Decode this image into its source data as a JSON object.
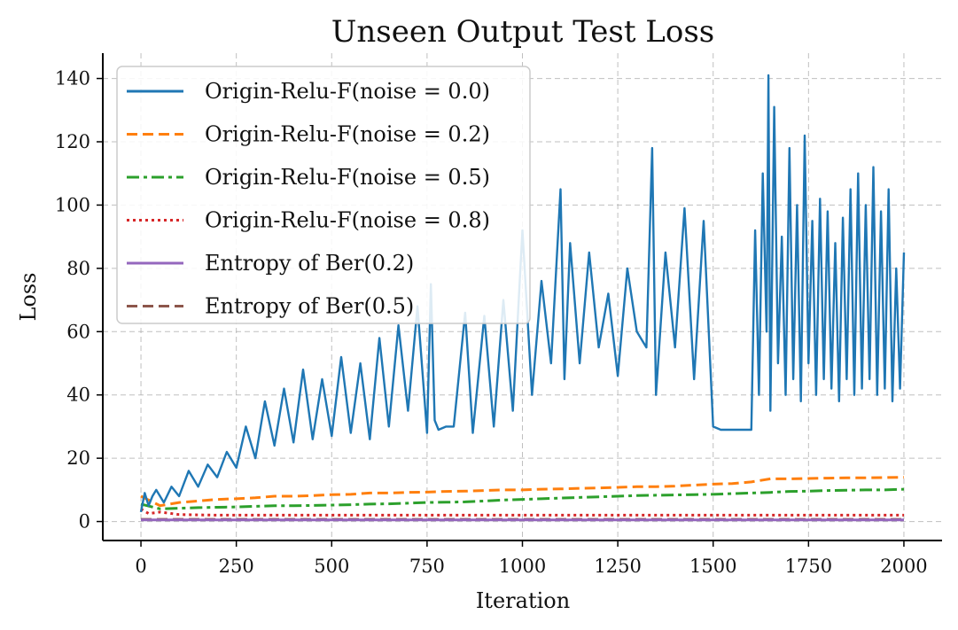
{
  "chart_data": {
    "type": "line",
    "title": "Unseen Output Test Loss",
    "xlabel": "Iteration",
    "ylabel": "Loss",
    "xlim": [
      -100,
      2100
    ],
    "ylim": [
      -6,
      148
    ],
    "xticks": [
      0,
      250,
      500,
      750,
      1000,
      1250,
      1500,
      1750,
      2000
    ],
    "xtick_labels": [
      "0",
      "250",
      "500",
      "750",
      "1000",
      "1250",
      "1500",
      "1750",
      "2000"
    ],
    "yticks": [
      0,
      20,
      40,
      60,
      80,
      100,
      120,
      140
    ],
    "ytick_labels": [
      "0",
      "20",
      "40",
      "60",
      "80",
      "100",
      "120",
      "140"
    ],
    "grid": true,
    "legend_position": "top-left",
    "series": [
      {
        "name": "Origin-Relu-F(noise = 0.0)",
        "color": "#1f77b4",
        "style": "solid",
        "x": [
          0,
          10,
          20,
          30,
          40,
          60,
          80,
          100,
          125,
          150,
          175,
          200,
          225,
          250,
          275,
          300,
          325,
          350,
          375,
          400,
          425,
          450,
          475,
          500,
          525,
          550,
          575,
          600,
          625,
          650,
          675,
          700,
          725,
          750,
          760,
          770,
          780,
          800,
          820,
          850,
          870,
          900,
          925,
          950,
          975,
          1000,
          1025,
          1050,
          1075,
          1100,
          1110,
          1125,
          1150,
          1175,
          1200,
          1225,
          1250,
          1275,
          1300,
          1325,
          1340,
          1350,
          1375,
          1400,
          1425,
          1450,
          1475,
          1500,
          1520,
          1550,
          1580,
          1600,
          1610,
          1620,
          1630,
          1640,
          1645,
          1650,
          1660,
          1670,
          1680,
          1690,
          1700,
          1710,
          1720,
          1730,
          1740,
          1750,
          1760,
          1770,
          1780,
          1790,
          1800,
          1810,
          1820,
          1830,
          1840,
          1850,
          1860,
          1870,
          1880,
          1890,
          1900,
          1910,
          1920,
          1930,
          1940,
          1950,
          1960,
          1970,
          1980,
          1990,
          2000
        ],
        "y": [
          3,
          9,
          5,
          8,
          10,
          6,
          11,
          8,
          16,
          11,
          18,
          14,
          22,
          17,
          30,
          20,
          38,
          24,
          42,
          25,
          48,
          26,
          45,
          27,
          52,
          28,
          50,
          26,
          58,
          30,
          62,
          35,
          68,
          28,
          75,
          32,
          29,
          30,
          30,
          66,
          28,
          65,
          30,
          70,
          35,
          92,
          40,
          76,
          50,
          105,
          45,
          88,
          50,
          85,
          55,
          72,
          46,
          80,
          60,
          55,
          118,
          40,
          85,
          55,
          99,
          45,
          95,
          30,
          29,
          29,
          29,
          29,
          92,
          40,
          110,
          60,
          141,
          35,
          131,
          50,
          90,
          40,
          118,
          45,
          100,
          38,
          122,
          50,
          95,
          40,
          102,
          45,
          98,
          42,
          88,
          38,
          96,
          45,
          105,
          40,
          110,
          42,
          100,
          45,
          112,
          40,
          98,
          42,
          105,
          38,
          80,
          42,
          85
        ]
      },
      {
        "name": "Origin-Relu-F(noise = 0.2)",
        "color": "#ff7f0e",
        "style": "dashed",
        "x": [
          0,
          50,
          100,
          150,
          200,
          250,
          300,
          350,
          400,
          450,
          500,
          550,
          600,
          650,
          700,
          750,
          800,
          850,
          900,
          950,
          1000,
          1050,
          1100,
          1150,
          1200,
          1250,
          1300,
          1350,
          1400,
          1450,
          1500,
          1550,
          1600,
          1650,
          1700,
          1750,
          1800,
          1850,
          1900,
          1950,
          2000
        ],
        "y": [
          8,
          5,
          6,
          6.5,
          7,
          7.2,
          7.5,
          8,
          8,
          8.2,
          8.5,
          8.6,
          9,
          9,
          9.2,
          9.3,
          9.5,
          9.6,
          9.8,
          10,
          10,
          10.2,
          10.3,
          10.5,
          10.6,
          10.8,
          11,
          11,
          11.2,
          11.5,
          11.8,
          12,
          12.5,
          13.5,
          13.5,
          13.6,
          13.7,
          13.8,
          13.8,
          13.9,
          14
        ]
      },
      {
        "name": "Origin-Relu-F(noise = 0.5)",
        "color": "#2ca02c",
        "style": "dashdot",
        "x": [
          0,
          50,
          100,
          150,
          200,
          250,
          300,
          350,
          400,
          450,
          500,
          550,
          600,
          650,
          700,
          750,
          800,
          850,
          900,
          950,
          1000,
          1050,
          1100,
          1150,
          1200,
          1250,
          1300,
          1350,
          1400,
          1450,
          1500,
          1550,
          1600,
          1650,
          1700,
          1750,
          1800,
          1850,
          1900,
          1950,
          2000
        ],
        "y": [
          5.5,
          4,
          4.2,
          4.4,
          4.5,
          4.6,
          4.8,
          5,
          5,
          5.1,
          5.2,
          5.3,
          5.5,
          5.6,
          5.8,
          6,
          6.1,
          6.2,
          6.5,
          6.8,
          7,
          7.2,
          7.4,
          7.6,
          7.8,
          8,
          8.2,
          8.3,
          8.4,
          8.5,
          8.6,
          8.8,
          9,
          9.2,
          9.5,
          9.6,
          9.8,
          9.9,
          10,
          10,
          10.2
        ]
      },
      {
        "name": "Origin-Relu-F(noise = 0.8)",
        "color": "#d62728",
        "style": "dotted",
        "x": [
          0,
          20,
          50,
          100,
          150,
          200,
          300,
          500,
          750,
          1000,
          1250,
          1500,
          1750,
          2000
        ],
        "y": [
          4,
          2.5,
          3,
          2.2,
          2.1,
          2,
          2,
          2,
          2,
          2,
          2,
          2,
          2,
          2
        ]
      },
      {
        "name": "Entropy of Ber(0.2)",
        "color": "#9467bd",
        "style": "solid",
        "x": [
          0,
          2000
        ],
        "y": [
          0.5,
          0.5
        ]
      },
      {
        "name": "Entropy of Ber(0.5)",
        "color": "#8c564b",
        "style": "dashed",
        "x": [
          0,
          2000
        ],
        "y": [
          0.69,
          0.69
        ]
      }
    ]
  }
}
